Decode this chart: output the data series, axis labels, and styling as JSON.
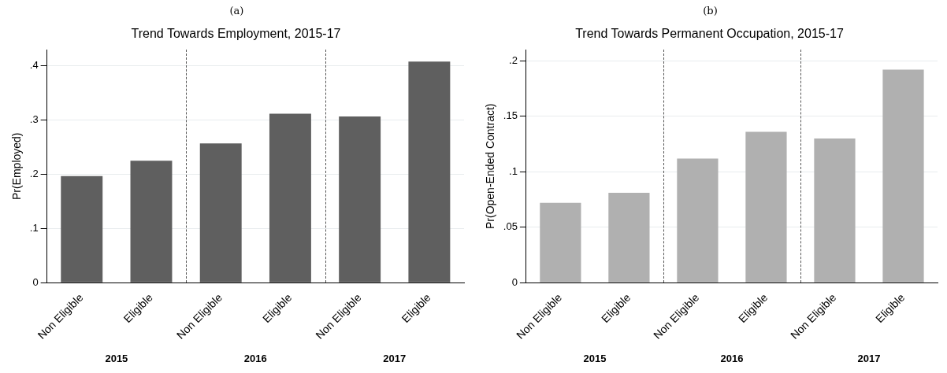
{
  "chart_data": [
    {
      "type": "bar",
      "subtitle": "(a)",
      "title": "Trend Towards Employment, 2015-17",
      "ylabel": "Pr(Employed)",
      "categories": [
        "Non Eligible",
        "Eligible",
        "Non Eligible",
        "Eligible",
        "Non Eligible",
        "Eligible"
      ],
      "values": [
        0.197,
        0.225,
        0.257,
        0.312,
        0.307,
        0.408
      ],
      "color": "#5f5f5f",
      "ylim": [
        0,
        0.43
      ],
      "yticks": [
        0,
        {
          "value": 0.1,
          "label": ".1"
        },
        {
          "value": 0.2,
          "label": ".2"
        },
        {
          "value": 0.3,
          "label": ".3"
        },
        {
          "value": 0.4,
          "label": ".4"
        }
      ],
      "grid": "y",
      "annotations": [
        "2015",
        "2016",
        "2017"
      ]
    },
    {
      "type": "bar",
      "subtitle": "(b)",
      "title": "Trend Towards Permanent Occupation, 2015-17",
      "ylabel": "Pr(Open-Ended Contract)",
      "categories": [
        "Non Eligible",
        "Eligible",
        "Non Eligible",
        "Eligible",
        "Non Eligible",
        "Eligible"
      ],
      "values": [
        0.072,
        0.081,
        0.112,
        0.136,
        0.13,
        0.192
      ],
      "color": "#b0b0b0",
      "ylim": [
        0,
        0.21
      ],
      "yticks": [
        0,
        {
          "value": 0.05,
          "label": ".05"
        },
        {
          "value": 0.1,
          "label": ".1"
        },
        {
          "value": 0.15,
          "label": ".15"
        },
        {
          "value": 0.2,
          "label": ".2"
        }
      ],
      "grid": "y",
      "annotations": [
        "2015",
        "2016",
        "2017"
      ]
    }
  ]
}
